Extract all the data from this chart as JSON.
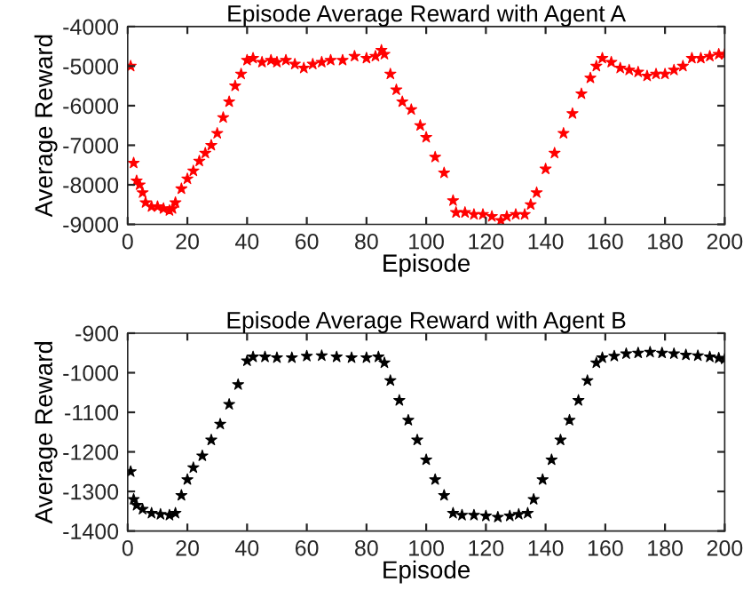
{
  "chart_data": [
    {
      "type": "scatter",
      "title": "Episode Average Reward with Agent A",
      "xlabel": "Episode",
      "ylabel": "Average Reward",
      "marker": "star",
      "grid": false,
      "legend": false,
      "xlim": [
        0,
        200
      ],
      "xticks": [
        0,
        20,
        40,
        60,
        80,
        100,
        120,
        140,
        160,
        180,
        200
      ],
      "ylim": [
        -9000,
        -4000
      ],
      "yticks": [
        -9000,
        -8000,
        -7000,
        -6000,
        -5000,
        -4000
      ],
      "series": [
        {
          "color": "#ff0000",
          "x": [
            1,
            2,
            3,
            4,
            5,
            6,
            8,
            10,
            12,
            14,
            15,
            16,
            18,
            20,
            22,
            24,
            26,
            28,
            30,
            32,
            34,
            36,
            38,
            40,
            42,
            45,
            48,
            50,
            53,
            56,
            59,
            62,
            65,
            68,
            72,
            76,
            80,
            83,
            85,
            86,
            88,
            90,
            92,
            95,
            98,
            100,
            103,
            106,
            109,
            110,
            113,
            116,
            119,
            122,
            125,
            127,
            130,
            133,
            135,
            137,
            140,
            143,
            146,
            149,
            152,
            155,
            157,
            159,
            162,
            165,
            168,
            171,
            174,
            177,
            180,
            183,
            186,
            189,
            192,
            195,
            198,
            200
          ],
          "values": [
            -5000,
            -7450,
            -7900,
            -8000,
            -8200,
            -8450,
            -8550,
            -8550,
            -8600,
            -8650,
            -8600,
            -8450,
            -8100,
            -7850,
            -7650,
            -7400,
            -7200,
            -7000,
            -6700,
            -6300,
            -5900,
            -5500,
            -5200,
            -4850,
            -4800,
            -4900,
            -4850,
            -4900,
            -4850,
            -4950,
            -5050,
            -4950,
            -4900,
            -4850,
            -4850,
            -4750,
            -4800,
            -4750,
            -4600,
            -4700,
            -5200,
            -5600,
            -5900,
            -6100,
            -6500,
            -6800,
            -7300,
            -7700,
            -8400,
            -8700,
            -8700,
            -8750,
            -8750,
            -8800,
            -8900,
            -8800,
            -8750,
            -8750,
            -8500,
            -8200,
            -7600,
            -7200,
            -6700,
            -6200,
            -5700,
            -5300,
            -5000,
            -4800,
            -4900,
            -5050,
            -5100,
            -5150,
            -5250,
            -5200,
            -5200,
            -5100,
            -5000,
            -4800,
            -4800,
            -4750,
            -4700,
            -4700
          ]
        }
      ]
    },
    {
      "type": "scatter",
      "title": "Episode Average Reward with Agent B",
      "xlabel": "Episode",
      "ylabel": "Average Reward",
      "marker": "star",
      "grid": false,
      "legend": false,
      "xlim": [
        0,
        200
      ],
      "xticks": [
        0,
        20,
        40,
        60,
        80,
        100,
        120,
        140,
        160,
        180,
        200
      ],
      "ylim": [
        -1400,
        -900
      ],
      "yticks": [
        -1400,
        -1300,
        -1200,
        -1100,
        -1000,
        -900
      ],
      "series": [
        {
          "color": "#000000",
          "x": [
            1,
            2,
            3,
            5,
            8,
            11,
            14,
            16,
            18,
            20,
            22,
            25,
            28,
            31,
            34,
            37,
            40,
            42,
            46,
            50,
            55,
            60,
            65,
            70,
            75,
            80,
            84,
            86,
            88,
            91,
            94,
            97,
            100,
            103,
            106,
            109,
            112,
            116,
            120,
            124,
            128,
            131,
            134,
            136,
            139,
            142,
            145,
            148,
            151,
            154,
            157,
            159,
            163,
            167,
            171,
            175,
            179,
            183,
            187,
            191,
            195,
            198,
            200
          ],
          "values": [
            -1250,
            -1320,
            -1335,
            -1345,
            -1355,
            -1358,
            -1360,
            -1355,
            -1310,
            -1270,
            -1240,
            -1210,
            -1170,
            -1130,
            -1080,
            -1030,
            -970,
            -960,
            -960,
            -962,
            -962,
            -958,
            -957,
            -960,
            -962,
            -962,
            -960,
            -975,
            -1020,
            -1070,
            -1120,
            -1170,
            -1220,
            -1270,
            -1310,
            -1355,
            -1360,
            -1360,
            -1362,
            -1365,
            -1362,
            -1358,
            -1355,
            -1320,
            -1270,
            -1220,
            -1170,
            -1120,
            -1070,
            -1020,
            -975,
            -962,
            -958,
            -952,
            -950,
            -948,
            -950,
            -952,
            -955,
            -957,
            -960,
            -963,
            -965
          ]
        }
      ]
    }
  ]
}
